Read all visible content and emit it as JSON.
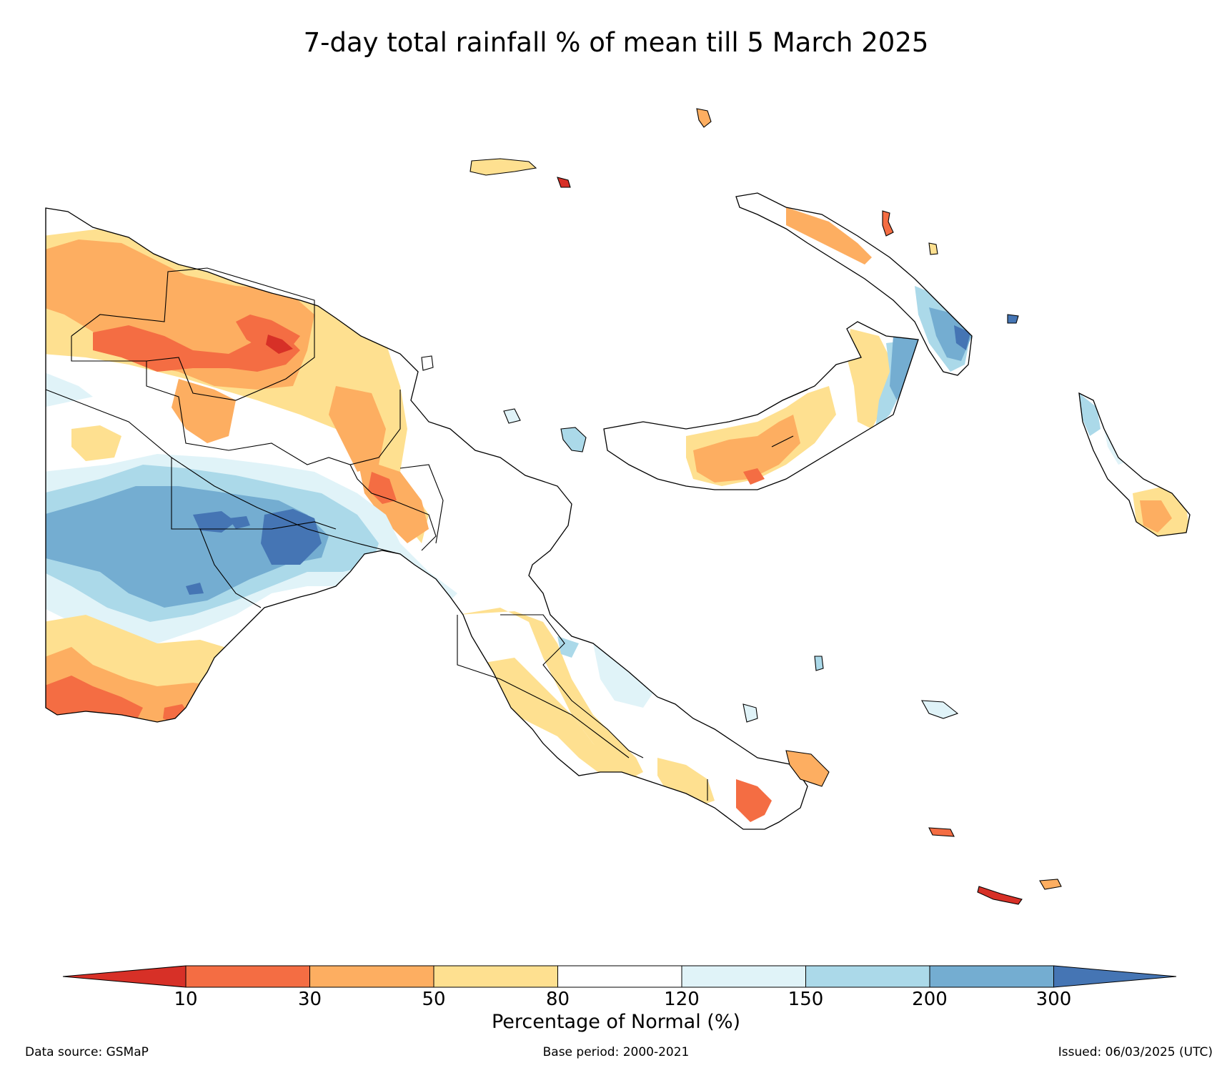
{
  "title": "7-day total rainfall % of mean till 5 March 2025",
  "colorbar": {
    "label": "Percentage of Normal (%)",
    "ticks": [
      "10",
      "30",
      "50",
      "80",
      "120",
      "150",
      "200",
      "300"
    ],
    "bins": [
      {
        "name": "<10",
        "color": "#d73027"
      },
      {
        "name": "10-30",
        "color": "#f46d43"
      },
      {
        "name": "30-50",
        "color": "#fdae61"
      },
      {
        "name": "50-80",
        "color": "#fee090"
      },
      {
        "name": "80-120",
        "color": "#ffffff"
      },
      {
        "name": "120-150",
        "color": "#e0f3f8"
      },
      {
        "name": "150-200",
        "color": "#abd9e9"
      },
      {
        "name": "200-300",
        "color": "#74add1"
      },
      {
        "name": ">300",
        "color": "#4575b4"
      }
    ]
  },
  "footer": {
    "source": "Data source: GSMaP",
    "base_period": "Base period: 2000-2021",
    "issued": "Issued: 06/03/2025 (UTC)"
  },
  "colors": {
    "lt10": "#d73027",
    "p10_30": "#f46d43",
    "p30_50": "#fdae61",
    "p50_80": "#fee090",
    "p80_120": "#ffffff",
    "p120_150": "#e0f3f8",
    "p150_200": "#abd9e9",
    "p200_300": "#74add1",
    "gt300": "#4575b4"
  }
}
